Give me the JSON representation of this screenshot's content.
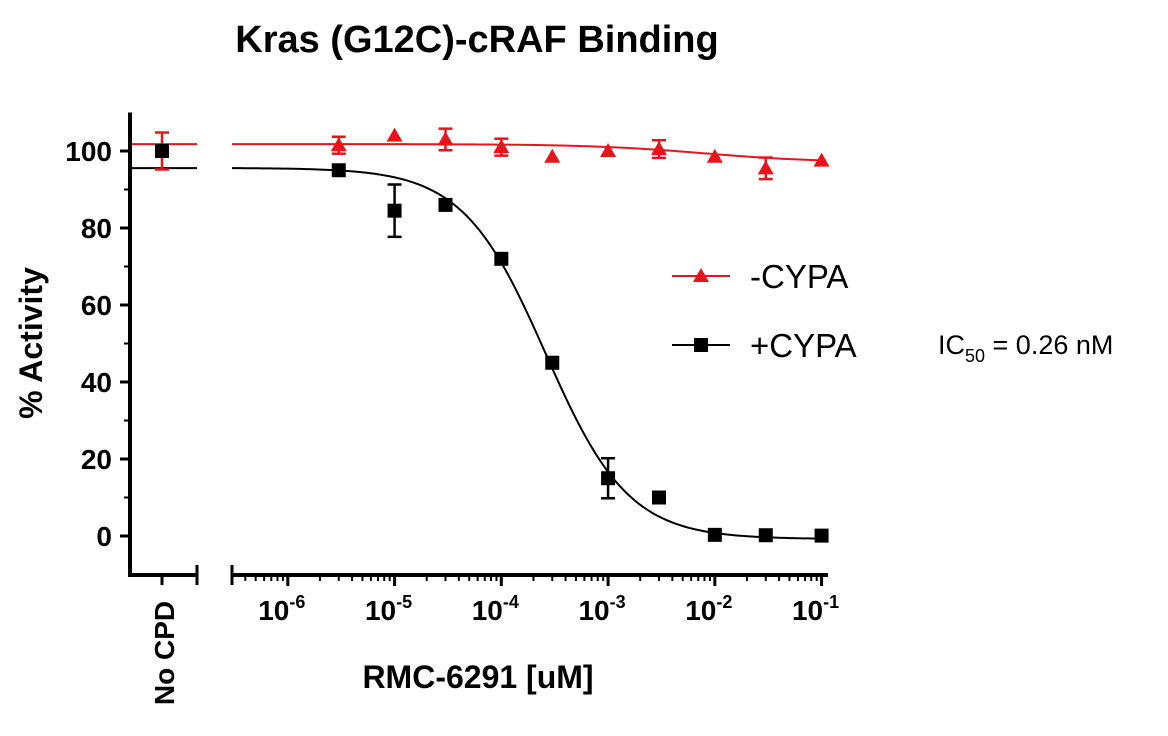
{
  "chart_data": {
    "type": "scatter",
    "title": "Kras (G12C)-cRAF Binding",
    "xlabel": "RMC-6291 [uM]",
    "ylabel": "% Activity",
    "x_scale": "log",
    "xlim": [
      3e-07,
      0.11
    ],
    "ylim": [
      -10,
      110
    ],
    "y_ticks": [
      0,
      20,
      40,
      60,
      80,
      100
    ],
    "x_tick_labels": [
      {
        "value": 1e-06,
        "base": "10",
        "exp": "-6"
      },
      {
        "value": 1e-05,
        "base": "10",
        "exp": "-5"
      },
      {
        "value": 0.0001,
        "base": "10",
        "exp": "-4"
      },
      {
        "value": 0.001,
        "base": "10",
        "exp": "-3"
      },
      {
        "value": 0.01,
        "base": "10",
        "exp": "-2"
      },
      {
        "value": 0.1,
        "base": "10",
        "exp": "-1"
      }
    ],
    "control_label": "No CPD",
    "control_point": {
      "y": 100,
      "err": 4.8
    },
    "axis_break": true,
    "legend_position": "right",
    "series": [
      {
        "name": "-CYPA",
        "color": "#e8141c",
        "marker": "triangle",
        "x": [
          3e-06,
          1e-05,
          3e-05,
          0.0001,
          0.0003,
          0.001,
          0.003,
          0.01,
          0.03,
          0.1
        ],
        "y": [
          101.5,
          104,
          103,
          101,
          98.5,
          100,
          100.5,
          98.5,
          95.5,
          97.5
        ],
        "err": [
          2.2,
          0,
          2.8,
          2.2,
          0,
          0,
          2.3,
          0,
          2.8,
          0
        ],
        "fit": {
          "top": 101.8,
          "bottom": 97.0,
          "log_ic50": -2.1,
          "hill": 0.8
        }
      },
      {
        "name": "+CYPA",
        "color": "#000000",
        "marker": "square",
        "x": [
          3e-06,
          1e-05,
          3e-05,
          0.0001,
          0.0003,
          0.001,
          0.003,
          0.01,
          0.03,
          0.1
        ],
        "y": [
          95,
          84.5,
          86,
          72,
          45,
          15,
          10,
          0.3,
          0.2,
          0.1
        ],
        "err": [
          0,
          6.8,
          0,
          0,
          0,
          5.2,
          0,
          0,
          0,
          0
        ],
        "fit": {
          "top": 95.6,
          "bottom": -0.8,
          "log_ic50": -3.585,
          "hill": 1.12
        }
      }
    ],
    "annotation": {
      "prefix": "IC",
      "subscript": "50",
      "suffix": " = 0.26 nM"
    }
  }
}
